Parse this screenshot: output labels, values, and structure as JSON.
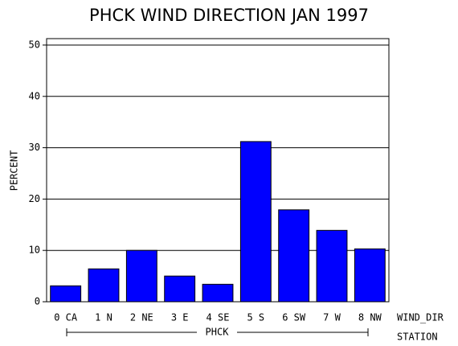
{
  "chart_data": {
    "type": "bar",
    "title": "PHCK WIND DIRECTION JAN 1997",
    "ylabel": "PERCENT",
    "xlabel": "WIND_DIR",
    "group_label": "PHCK",
    "group_axis_label": "STATION",
    "categories": [
      "0 CA",
      "1 N",
      "2 NE",
      "3 E",
      "4 SE",
      "5 S",
      "6 SW",
      "7 W",
      "8 NW"
    ],
    "values": [
      3.1,
      6.4,
      10.0,
      5.0,
      3.4,
      31.2,
      17.9,
      13.9,
      10.3
    ],
    "color": "#0000ff",
    "ylim": [
      0,
      51.25
    ],
    "yticks": [
      0,
      10,
      20,
      30,
      40,
      50
    ],
    "grid": true
  }
}
